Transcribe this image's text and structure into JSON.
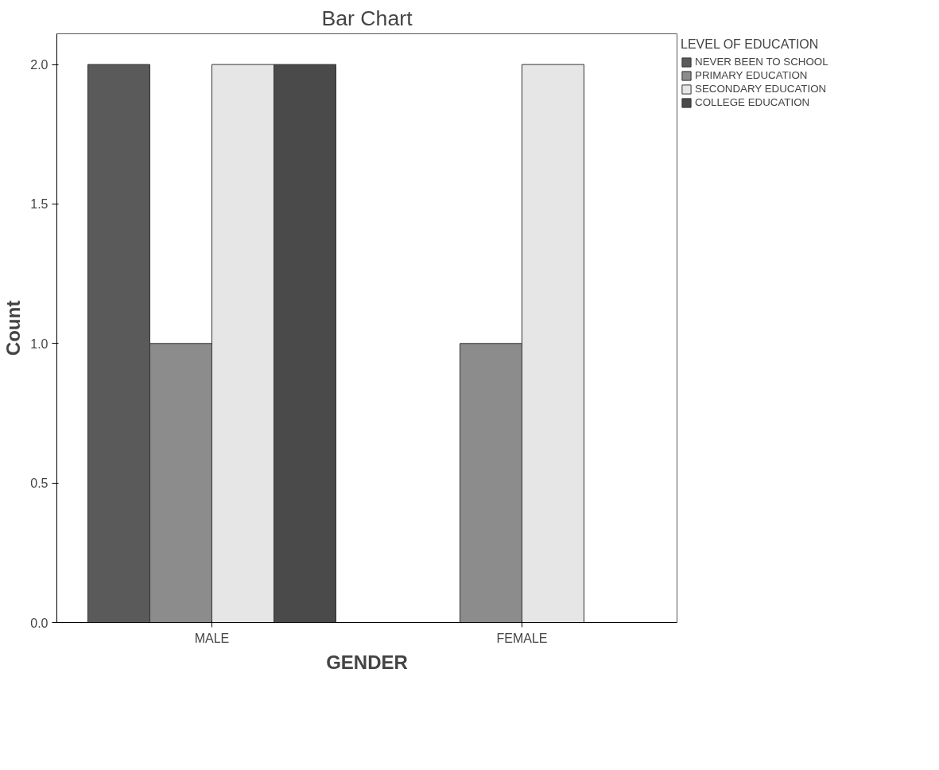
{
  "chart_data": {
    "type": "bar",
    "title": "Bar Chart",
    "xlabel": "GENDER",
    "ylabel": "Count",
    "legend_title": "LEVEL OF EDUCATION",
    "categories": [
      "MALE",
      "FEMALE"
    ],
    "series": [
      {
        "name": "NEVER BEEN TO SCHOOL",
        "color": "#5a5a5a",
        "values": [
          2,
          null
        ]
      },
      {
        "name": "PRIMARY EDUCATION",
        "color": "#8c8c8c",
        "values": [
          1,
          1
        ]
      },
      {
        "name": "SECONDARY EDUCATION",
        "color": "#e6e6e6",
        "values": [
          2,
          2
        ]
      },
      {
        "name": "COLLEGE EDUCATION",
        "color": "#4a4a4a",
        "values": [
          2,
          null
        ]
      }
    ],
    "ylim": [
      0,
      2.11
    ],
    "yticks": [
      {
        "value": 0,
        "label": "0.0"
      },
      {
        "value": 0.5,
        "label": "0.5"
      },
      {
        "value": 1,
        "label": "1.0"
      },
      {
        "value": 1.5,
        "label": "1.5"
      },
      {
        "value": 2,
        "label": "2.0"
      }
    ],
    "grid": false,
    "legend": "right"
  }
}
